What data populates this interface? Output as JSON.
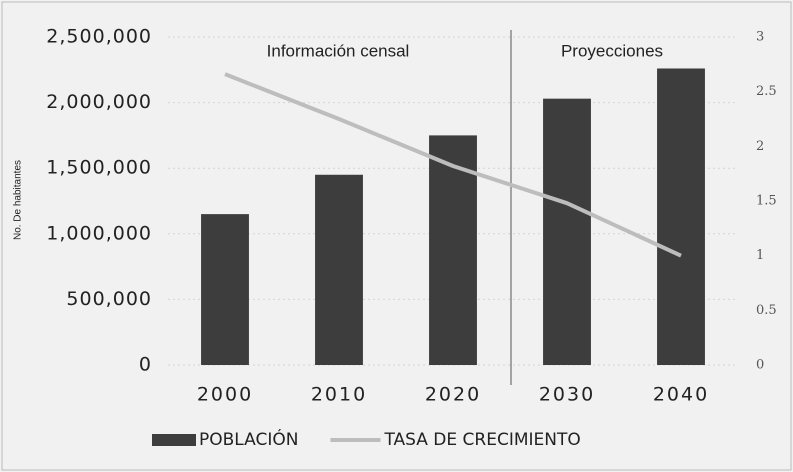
{
  "chart_data": {
    "type": "bar",
    "ylabel": "No. De habitantes",
    "annotations": [
      "Información censal",
      "Proyecciones"
    ],
    "categories": [
      "2000",
      "2010",
      "2020",
      "2030",
      "2040"
    ],
    "series": [
      {
        "name": "POBLACIÓN",
        "color": "#3d3d3d",
        "values": [
          1150000,
          1450000,
          1750000,
          2030000,
          2260000
        ]
      },
      {
        "name": "TASA DE CRECIMIENTO",
        "color": "#bdbdbd",
        "type": "line",
        "axis": "y2",
        "values": [
          2.66,
          2.25,
          1.82,
          1.48,
          1.0
        ]
      }
    ],
    "ylim": [
      0,
      2500000
    ],
    "yticks": [
      0,
      {
        "value": 500000,
        "label": "500,000"
      },
      {
        "value": 1000000,
        "label": "1,000,000"
      },
      {
        "value": 1500000,
        "label": "1,500,000"
      },
      {
        "value": 2000000,
        "label": "2,000,000"
      },
      {
        "value": 2500000,
        "label": "2,500,000"
      }
    ],
    "y2lim": [
      0,
      3
    ],
    "y2ticks": [
      0,
      0.5,
      1,
      1.5,
      2,
      2.5,
      3
    ],
    "grid": true
  }
}
